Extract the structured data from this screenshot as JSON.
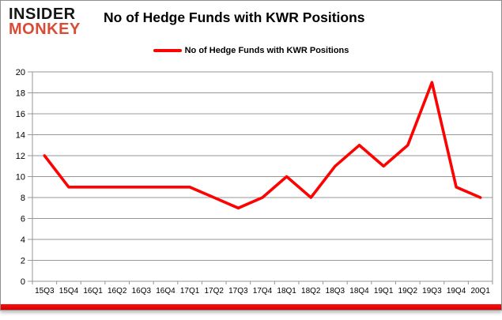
{
  "logo": {
    "line1": "INSIDER",
    "line2": "MONKEY"
  },
  "title": "No of Hedge Funds with KWR Positions",
  "legend": {
    "label": "No of Hedge Funds with KWR Positions"
  },
  "colors": {
    "line": "#fe0101",
    "logo_black": "#151515",
    "logo_red": "#d84b35",
    "grid": "#979797",
    "text": "#000000",
    "bottom_bar": "#ff0e0e"
  },
  "chart_data": {
    "type": "line",
    "title": "No of Hedge Funds with KWR Positions",
    "categories": [
      "15Q3",
      "15Q4",
      "16Q1",
      "16Q2",
      "16Q3",
      "16Q4",
      "17Q1",
      "17Q2",
      "17Q3",
      "17Q4",
      "18Q1",
      "18Q2",
      "18Q3",
      "18Q4",
      "19Q1",
      "19Q2",
      "19Q3",
      "19Q4",
      "20Q1"
    ],
    "series": [
      {
        "name": "No of Hedge Funds with KWR Positions",
        "values": [
          12,
          9,
          9,
          9,
          9,
          9,
          9,
          8,
          7,
          8,
          10,
          8,
          11,
          13,
          11,
          13,
          19,
          9,
          8
        ]
      }
    ],
    "xlabel": "",
    "ylabel": "",
    "ylim": [
      0,
      20
    ],
    "ytick_step": 2,
    "grid": true,
    "legend_position": "top-center"
  }
}
